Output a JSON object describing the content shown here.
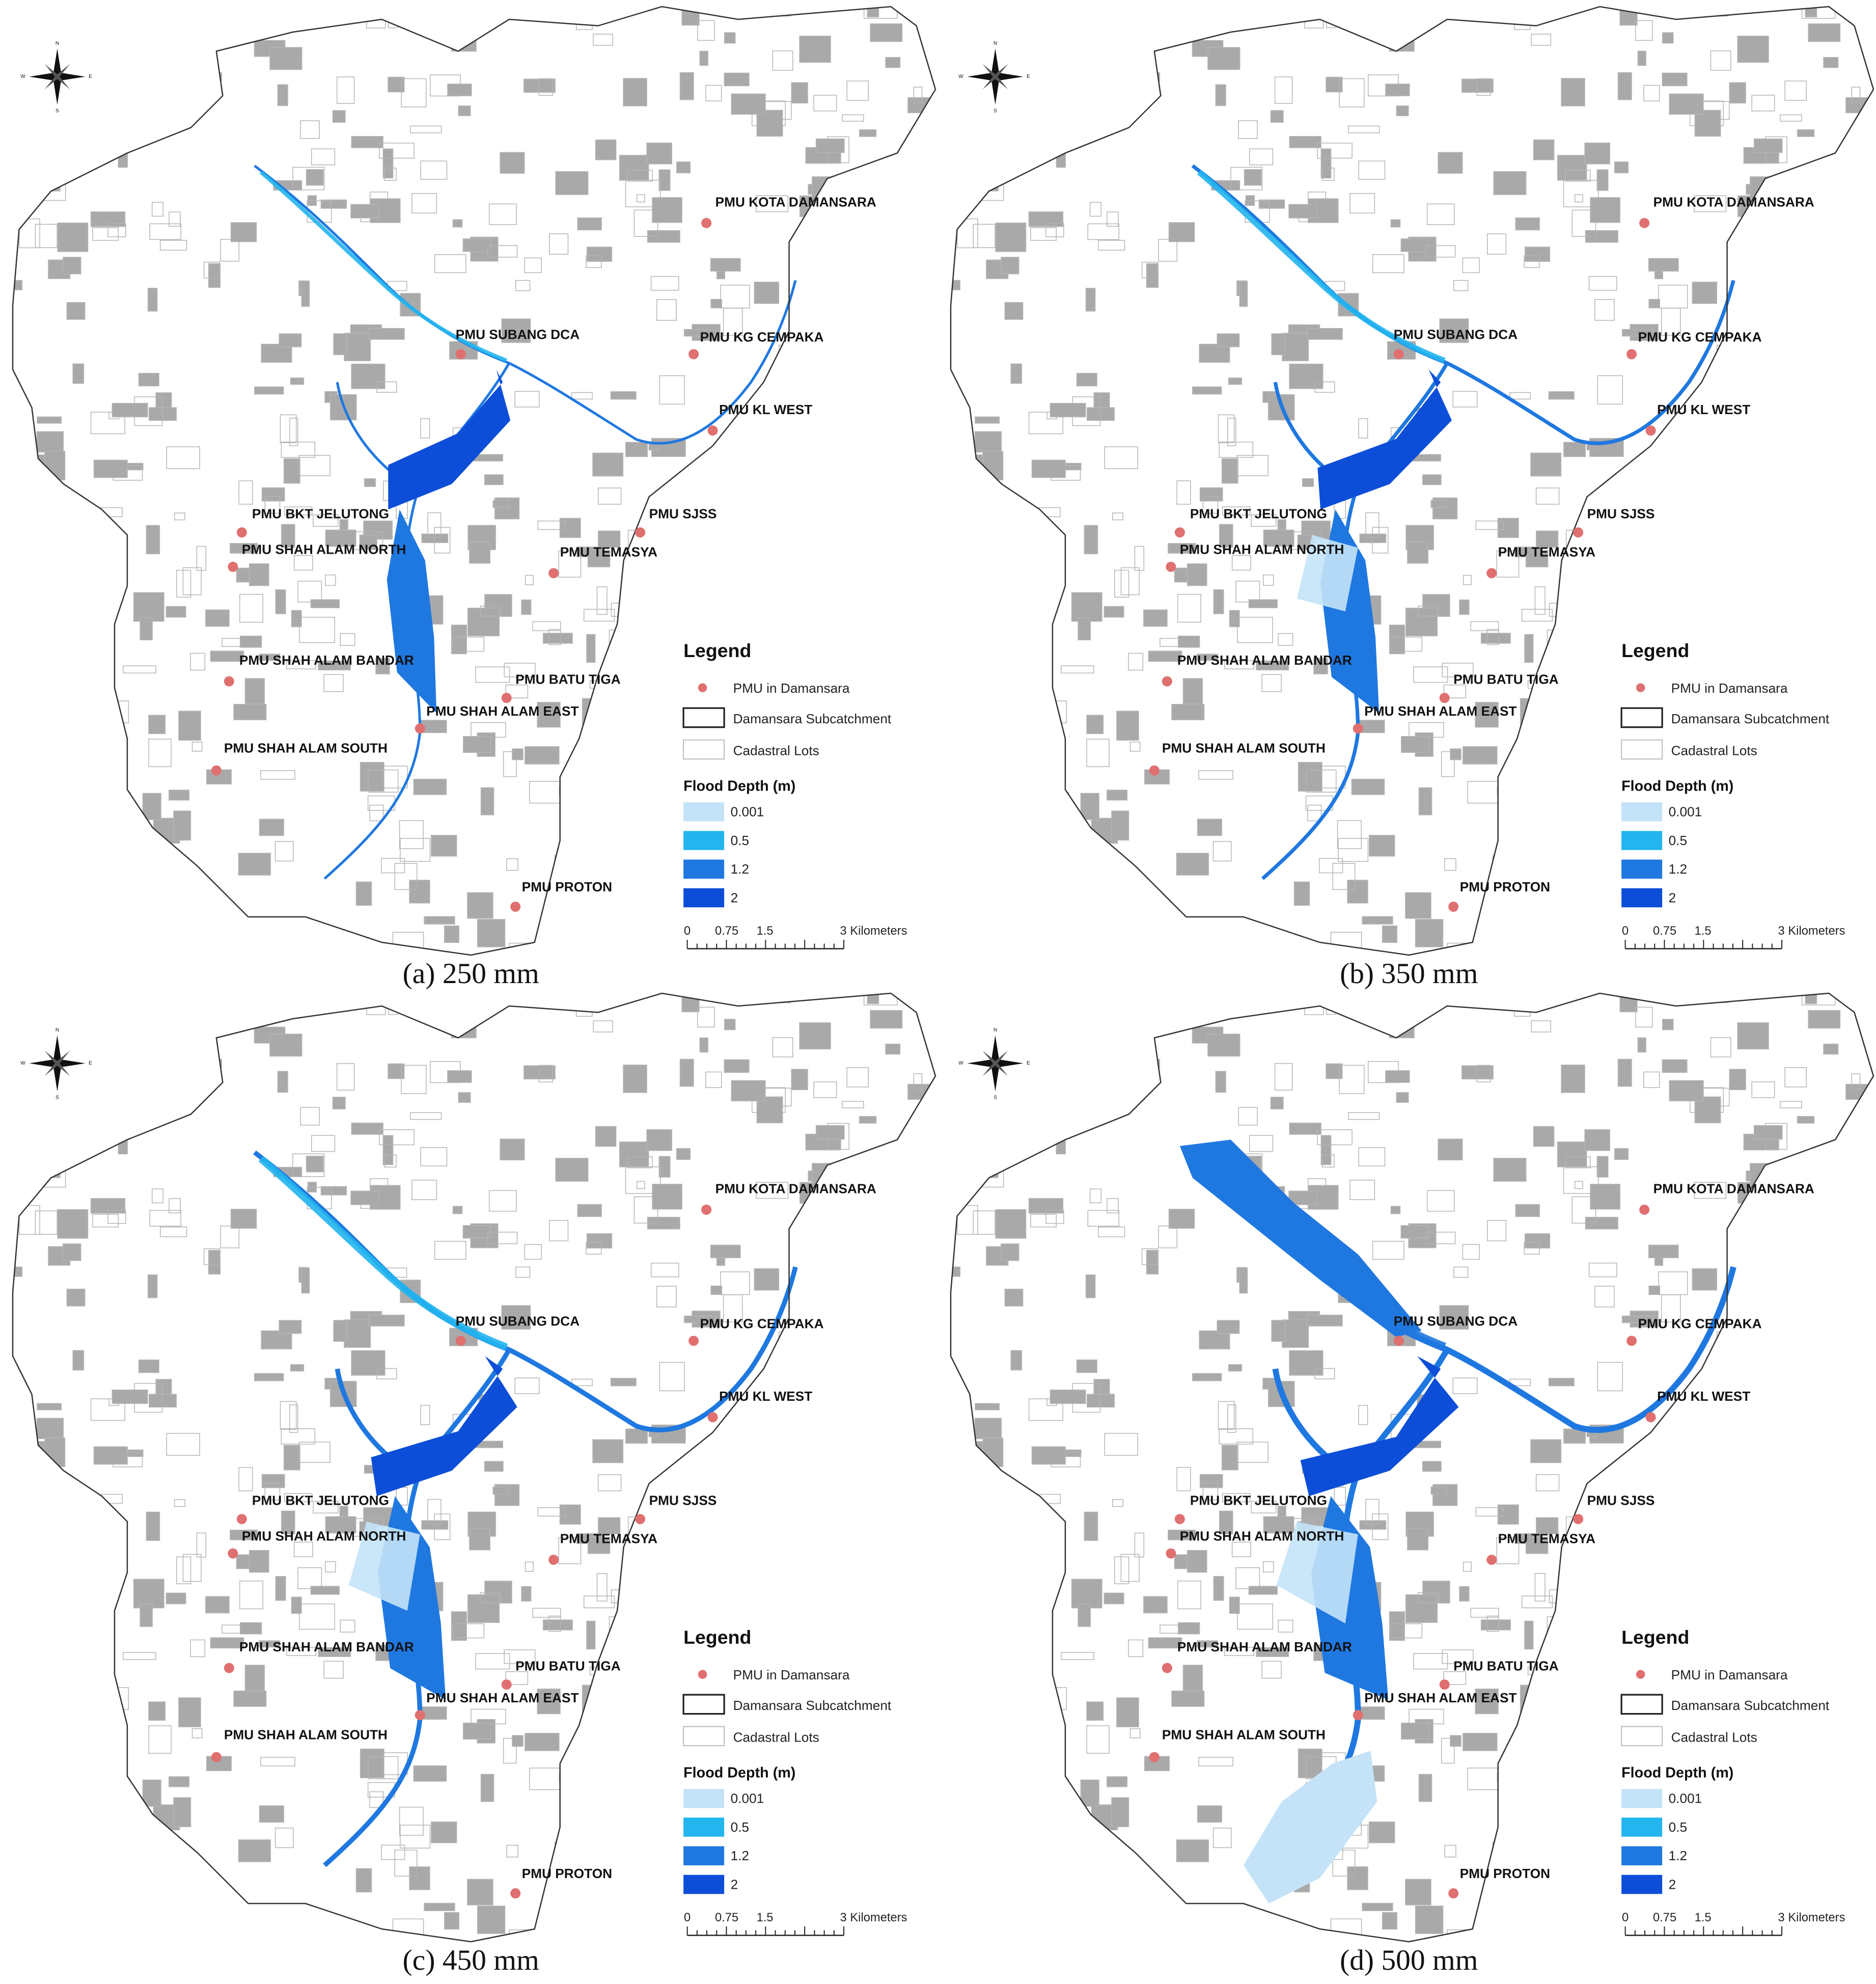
{
  "panels": [
    {
      "caption": "(a) 250 mm"
    },
    {
      "caption": "(b) 350 mm"
    },
    {
      "caption": "(c) 450 mm"
    },
    {
      "caption": "(d) 500 mm"
    }
  ],
  "pmu_labels": [
    "PMU KOTA DAMANSARA",
    "PMU SUBANG DCA",
    "PMU KG CEMPAKA",
    "PMU KL WEST",
    "PMU BKT JELUTONG",
    "PMU SJSS",
    "PMU SHAH ALAM NORTH",
    "PMU TEMASYA",
    "PMU SHAH ALAM BANDAR",
    "PMU BATU TIGA",
    "PMU SHAH ALAM EAST",
    "PMU SHAH ALAM SOUTH",
    "PMU PROTON"
  ],
  "legend": {
    "title": "Legend",
    "items": [
      "PMU in Damansara",
      "Damansara Subcatchment",
      "Cadastral Lots"
    ],
    "flood_title": "Flood Depth (m)",
    "flood_classes": [
      {
        "label": "0.001",
        "color": "#c4e3f8"
      },
      {
        "label": "0.5",
        "color": "#22b5ee"
      },
      {
        "label": "1.2",
        "color": "#1f78e0"
      },
      {
        "label": "2",
        "color": "#0d4ed8"
      }
    ]
  },
  "scale_bar": {
    "ticks": [
      "0",
      "0.75",
      "1.5",
      "3 Kilometers"
    ]
  },
  "compass": [
    "N",
    "S",
    "E",
    "W"
  ]
}
